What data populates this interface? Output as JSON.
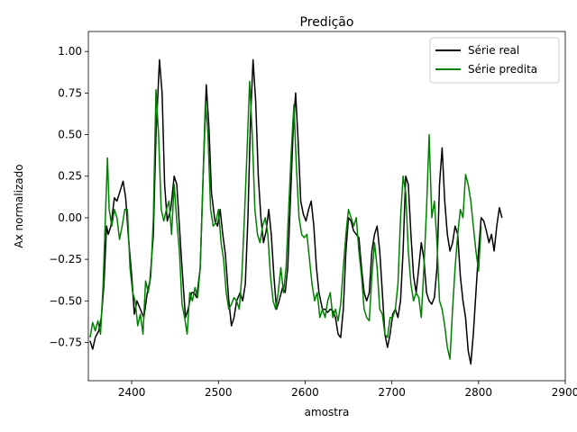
{
  "chart_data": {
    "type": "line",
    "title": "Predição",
    "xlabel": "amostra",
    "ylabel": "Ax normalizado",
    "xlim": [
      2350,
      2900
    ],
    "ylim": [
      -0.98,
      1.12
    ],
    "xticks": [
      2400,
      2500,
      2600,
      2700,
      2800,
      2900
    ],
    "yticks": [
      -0.75,
      -0.5,
      -0.25,
      0.0,
      0.25,
      0.5,
      0.75,
      1.0
    ],
    "xtick_labels": [
      "2400",
      "2500",
      "2600",
      "2700",
      "2800",
      "2900"
    ],
    "ytick_labels": [
      "−0.75",
      "−0.50",
      "−0.25",
      "0.00",
      "0.25",
      "0.50",
      "0.75",
      "1.00"
    ],
    "grid": false,
    "legend_position": "top-right",
    "series": [
      {
        "name": "Série real",
        "color": "#000000",
        "points": [
          [
            2352,
            -0.74
          ],
          [
            2355,
            -0.79
          ],
          [
            2358,
            -0.72
          ],
          [
            2362,
            -0.68
          ],
          [
            2365,
            -0.6
          ],
          [
            2368,
            -0.4
          ],
          [
            2371,
            -0.05
          ],
          [
            2373,
            -0.1
          ],
          [
            2376,
            -0.05
          ],
          [
            2380,
            0.12
          ],
          [
            2383,
            0.1
          ],
          [
            2386,
            0.15
          ],
          [
            2390,
            0.22
          ],
          [
            2393,
            0.12
          ],
          [
            2396,
            -0.1
          ],
          [
            2400,
            -0.35
          ],
          [
            2403,
            -0.58
          ],
          [
            2406,
            -0.5
          ],
          [
            2410,
            -0.55
          ],
          [
            2414,
            -0.6
          ],
          [
            2418,
            -0.45
          ],
          [
            2421,
            -0.38
          ],
          [
            2425,
            -0.1
          ],
          [
            2428,
            0.5
          ],
          [
            2432,
            0.95
          ],
          [
            2435,
            0.75
          ],
          [
            2438,
            0.2
          ],
          [
            2441,
            -0.02
          ],
          [
            2445,
            0.05
          ],
          [
            2449,
            0.25
          ],
          [
            2452,
            0.2
          ],
          [
            2455,
            -0.05
          ],
          [
            2458,
            -0.3
          ],
          [
            2462,
            -0.6
          ],
          [
            2465,
            -0.55
          ],
          [
            2469,
            -0.45
          ],
          [
            2472,
            -0.45
          ],
          [
            2475,
            -0.48
          ],
          [
            2479,
            -0.3
          ],
          [
            2482,
            0.2
          ],
          [
            2486,
            0.8
          ],
          [
            2489,
            0.55
          ],
          [
            2492,
            0.15
          ],
          [
            2496,
            -0.02
          ],
          [
            2499,
            -0.05
          ],
          [
            2502,
            0.05
          ],
          [
            2505,
            -0.1
          ],
          [
            2508,
            -0.22
          ],
          [
            2512,
            -0.5
          ],
          [
            2515,
            -0.65
          ],
          [
            2518,
            -0.6
          ],
          [
            2521,
            -0.5
          ],
          [
            2525,
            -0.45
          ],
          [
            2528,
            -0.5
          ],
          [
            2531,
            -0.4
          ],
          [
            2534,
            0.0
          ],
          [
            2537,
            0.6
          ],
          [
            2540,
            0.95
          ],
          [
            2543,
            0.7
          ],
          [
            2546,
            0.25
          ],
          [
            2549,
            0.0
          ],
          [
            2552,
            -0.15
          ],
          [
            2555,
            -0.08
          ],
          [
            2558,
            0.05
          ],
          [
            2561,
            -0.1
          ],
          [
            2564,
            -0.35
          ],
          [
            2567,
            -0.55
          ],
          [
            2570,
            -0.5
          ],
          [
            2574,
            -0.42
          ],
          [
            2577,
            -0.45
          ],
          [
            2580,
            -0.3
          ],
          [
            2583,
            0.1
          ],
          [
            2586,
            0.5
          ],
          [
            2589,
            0.75
          ],
          [
            2592,
            0.45
          ],
          [
            2595,
            0.1
          ],
          [
            2598,
            0.02
          ],
          [
            2601,
            -0.02
          ],
          [
            2604,
            0.05
          ],
          [
            2607,
            0.1
          ],
          [
            2610,
            -0.05
          ],
          [
            2613,
            -0.3
          ],
          [
            2616,
            -0.45
          ],
          [
            2620,
            -0.55
          ],
          [
            2623,
            -0.55
          ],
          [
            2626,
            -0.57
          ],
          [
            2629,
            -0.55
          ],
          [
            2632,
            -0.56
          ],
          [
            2635,
            -0.6
          ],
          [
            2638,
            -0.7
          ],
          [
            2641,
            -0.72
          ],
          [
            2644,
            -0.55
          ],
          [
            2647,
            -0.2
          ],
          [
            2650,
            0.0
          ],
          [
            2653,
            -0.02
          ],
          [
            2656,
            -0.08
          ],
          [
            2659,
            -0.1
          ],
          [
            2662,
            -0.12
          ],
          [
            2665,
            -0.3
          ],
          [
            2668,
            -0.45
          ],
          [
            2671,
            -0.5
          ],
          [
            2674,
            -0.45
          ],
          [
            2677,
            -0.2
          ],
          [
            2680,
            -0.1
          ],
          [
            2683,
            -0.05
          ],
          [
            2686,
            -0.2
          ],
          [
            2689,
            -0.45
          ],
          [
            2692,
            -0.7
          ],
          [
            2695,
            -0.78
          ],
          [
            2698,
            -0.7
          ],
          [
            2701,
            -0.58
          ],
          [
            2704,
            -0.55
          ],
          [
            2707,
            -0.6
          ],
          [
            2710,
            -0.5
          ],
          [
            2713,
            -0.2
          ],
          [
            2716,
            0.25
          ],
          [
            2719,
            0.2
          ],
          [
            2722,
            -0.1
          ],
          [
            2725,
            -0.35
          ],
          [
            2728,
            -0.45
          ],
          [
            2731,
            -0.3
          ],
          [
            2734,
            -0.15
          ],
          [
            2737,
            -0.25
          ],
          [
            2740,
            -0.45
          ],
          [
            2743,
            -0.5
          ],
          [
            2746,
            -0.52
          ],
          [
            2749,
            -0.48
          ],
          [
            2752,
            -0.3
          ],
          [
            2755,
            0.2
          ],
          [
            2758,
            0.42
          ],
          [
            2761,
            0.1
          ],
          [
            2764,
            -0.1
          ],
          [
            2767,
            -0.2
          ],
          [
            2770,
            -0.15
          ],
          [
            2773,
            -0.05
          ],
          [
            2776,
            -0.1
          ],
          [
            2779,
            -0.35
          ],
          [
            2782,
            -0.5
          ],
          [
            2785,
            -0.6
          ],
          [
            2788,
            -0.8
          ],
          [
            2791,
            -0.88
          ],
          [
            2794,
            -0.7
          ],
          [
            2797,
            -0.45
          ],
          [
            2800,
            -0.2
          ],
          [
            2803,
            0.0
          ],
          [
            2806,
            -0.02
          ],
          [
            2809,
            -0.08
          ],
          [
            2812,
            -0.15
          ],
          [
            2815,
            -0.1
          ],
          [
            2818,
            -0.2
          ],
          [
            2821,
            -0.05
          ],
          [
            2824,
            0.06
          ],
          [
            2827,
            0.0
          ]
        ]
      },
      {
        "name": "Série predita",
        "color": "#008000",
        "points": [
          [
            2352,
            -0.72
          ],
          [
            2355,
            -0.63
          ],
          [
            2358,
            -0.68
          ],
          [
            2361,
            -0.62
          ],
          [
            2364,
            -0.7
          ],
          [
            2367,
            -0.4
          ],
          [
            2370,
            0.05
          ],
          [
            2372,
            0.36
          ],
          [
            2374,
            0.05
          ],
          [
            2377,
            -0.05
          ],
          [
            2380,
            0.05
          ],
          [
            2383,
            0.0
          ],
          [
            2386,
            -0.13
          ],
          [
            2389,
            -0.05
          ],
          [
            2392,
            0.05
          ],
          [
            2395,
            0.05
          ],
          [
            2398,
            -0.3
          ],
          [
            2401,
            -0.45
          ],
          [
            2404,
            -0.5
          ],
          [
            2407,
            -0.65
          ],
          [
            2410,
            -0.58
          ],
          [
            2413,
            -0.7
          ],
          [
            2416,
            -0.38
          ],
          [
            2419,
            -0.45
          ],
          [
            2422,
            -0.35
          ],
          [
            2425,
            0.0
          ],
          [
            2428,
            0.77
          ],
          [
            2431,
            0.5
          ],
          [
            2434,
            0.05
          ],
          [
            2437,
            -0.02
          ],
          [
            2440,
            0.05
          ],
          [
            2443,
            0.1
          ],
          [
            2446,
            -0.1
          ],
          [
            2449,
            0.2
          ],
          [
            2452,
            -0.02
          ],
          [
            2455,
            -0.2
          ],
          [
            2458,
            -0.52
          ],
          [
            2461,
            -0.6
          ],
          [
            2464,
            -0.7
          ],
          [
            2467,
            -0.45
          ],
          [
            2470,
            -0.5
          ],
          [
            2473,
            -0.42
          ],
          [
            2476,
            -0.48
          ],
          [
            2479,
            -0.3
          ],
          [
            2482,
            0.2
          ],
          [
            2485,
            0.7
          ],
          [
            2488,
            0.5
          ],
          [
            2491,
            0.05
          ],
          [
            2494,
            -0.05
          ],
          [
            2497,
            -0.03
          ],
          [
            2500,
            0.05
          ],
          [
            2503,
            -0.15
          ],
          [
            2506,
            -0.25
          ],
          [
            2509,
            -0.45
          ],
          [
            2512,
            -0.55
          ],
          [
            2515,
            -0.52
          ],
          [
            2518,
            -0.48
          ],
          [
            2521,
            -0.5
          ],
          [
            2524,
            -0.55
          ],
          [
            2527,
            -0.35
          ],
          [
            2530,
            0.0
          ],
          [
            2533,
            0.4
          ],
          [
            2536,
            0.82
          ],
          [
            2539,
            0.5
          ],
          [
            2542,
            0.05
          ],
          [
            2545,
            -0.1
          ],
          [
            2548,
            -0.15
          ],
          [
            2551,
            -0.05
          ],
          [
            2554,
            0.0
          ],
          [
            2557,
            -0.1
          ],
          [
            2560,
            -0.35
          ],
          [
            2563,
            -0.5
          ],
          [
            2566,
            -0.55
          ],
          [
            2569,
            -0.45
          ],
          [
            2572,
            -0.3
          ],
          [
            2575,
            -0.45
          ],
          [
            2578,
            -0.3
          ],
          [
            2581,
            0.05
          ],
          [
            2584,
            0.4
          ],
          [
            2587,
            0.68
          ],
          [
            2590,
            0.3
          ],
          [
            2593,
            0.0
          ],
          [
            2596,
            -0.1
          ],
          [
            2599,
            -0.12
          ],
          [
            2602,
            -0.1
          ],
          [
            2605,
            -0.25
          ],
          [
            2608,
            -0.4
          ],
          [
            2611,
            -0.5
          ],
          [
            2614,
            -0.45
          ],
          [
            2617,
            -0.6
          ],
          [
            2620,
            -0.55
          ],
          [
            2623,
            -0.6
          ],
          [
            2626,
            -0.5
          ],
          [
            2629,
            -0.45
          ],
          [
            2632,
            -0.6
          ],
          [
            2635,
            -0.55
          ],
          [
            2638,
            -0.62
          ],
          [
            2641,
            -0.52
          ],
          [
            2644,
            -0.3
          ],
          [
            2647,
            -0.1
          ],
          [
            2650,
            0.05
          ],
          [
            2653,
            0.0
          ],
          [
            2656,
            -0.05
          ],
          [
            2659,
            0.0
          ],
          [
            2662,
            -0.2
          ],
          [
            2665,
            -0.35
          ],
          [
            2668,
            -0.55
          ],
          [
            2671,
            -0.6
          ],
          [
            2674,
            -0.62
          ],
          [
            2677,
            -0.35
          ],
          [
            2680,
            -0.15
          ],
          [
            2683,
            -0.3
          ],
          [
            2686,
            -0.55
          ],
          [
            2689,
            -0.58
          ],
          [
            2692,
            -0.7
          ],
          [
            2695,
            -0.72
          ],
          [
            2698,
            -0.6
          ],
          [
            2701,
            -0.6
          ],
          [
            2704,
            -0.55
          ],
          [
            2707,
            -0.4
          ],
          [
            2710,
            0.0
          ],
          [
            2713,
            0.25
          ],
          [
            2716,
            0.15
          ],
          [
            2719,
            -0.2
          ],
          [
            2722,
            -0.4
          ],
          [
            2725,
            -0.5
          ],
          [
            2728,
            -0.45
          ],
          [
            2731,
            -0.48
          ],
          [
            2734,
            -0.6
          ],
          [
            2737,
            -0.3
          ],
          [
            2740,
            0.05
          ],
          [
            2743,
            0.5
          ],
          [
            2746,
            0.0
          ],
          [
            2749,
            0.1
          ],
          [
            2752,
            -0.15
          ],
          [
            2755,
            -0.5
          ],
          [
            2758,
            -0.55
          ],
          [
            2761,
            -0.65
          ],
          [
            2764,
            -0.78
          ],
          [
            2767,
            -0.85
          ],
          [
            2770,
            -0.55
          ],
          [
            2773,
            -0.3
          ],
          [
            2776,
            -0.1
          ],
          [
            2779,
            0.05
          ],
          [
            2782,
            0.0
          ],
          [
            2785,
            0.26
          ],
          [
            2788,
            0.2
          ],
          [
            2791,
            0.1
          ],
          [
            2794,
            -0.05
          ],
          [
            2797,
            -0.2
          ],
          [
            2800,
            -0.32
          ],
          [
            2803,
            -0.05
          ]
        ]
      }
    ]
  }
}
